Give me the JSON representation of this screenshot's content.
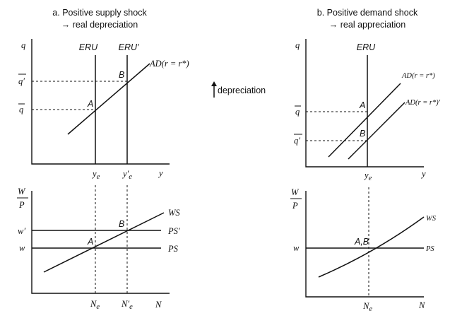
{
  "panel_a": {
    "title_line1": "a. Positive supply shock",
    "title_line2": "→ real depreciation",
    "top": {
      "y_axis": "q",
      "x_axis": "y",
      "eru_label": "ERU",
      "eru_prime_label": "ERU′",
      "ad_label": "AD(r = r*)",
      "q_bar_prime": "q′",
      "q_bar": "q",
      "point_a": "A",
      "point_b": "B",
      "ye_label": "y",
      "ye_sub": "e",
      "ye_prime_label": "y′",
      "ye_prime_sub": "e"
    },
    "bottom": {
      "y_axis_num": "W",
      "y_axis_den": "P",
      "x_axis": "N",
      "ws_label": "WS",
      "ps_prime_label": "PS′",
      "ps_label": "PS",
      "w_prime": "w′",
      "w": "w",
      "point_a": "A",
      "point_b": "B",
      "ne_label": "N",
      "ne_sub": "e",
      "ne_prime_label": "N′",
      "ne_prime_sub": "e"
    }
  },
  "middle": {
    "depreciation_label": "depreciation"
  },
  "panel_b": {
    "title_line1": "b. Positive demand shock",
    "title_line2": "→ real appreciation",
    "top": {
      "y_axis": "q",
      "x_axis": "y",
      "eru_label": "ERU",
      "ad1_label": "AD(r = r*)",
      "ad2_label": "AD(r = r*)′",
      "q_bar": "q",
      "q_bar_prime": "q′",
      "point_a": "A",
      "point_b": "B",
      "ye_label": "y",
      "ye_sub": "e"
    },
    "bottom": {
      "y_axis_num": "W",
      "y_axis_den": "P",
      "x_axis": "N",
      "ws_label": "WS",
      "ps_label": "PS",
      "w": "w",
      "point_ab": "A,B",
      "ne_label": "N",
      "ne_sub": "e"
    }
  }
}
